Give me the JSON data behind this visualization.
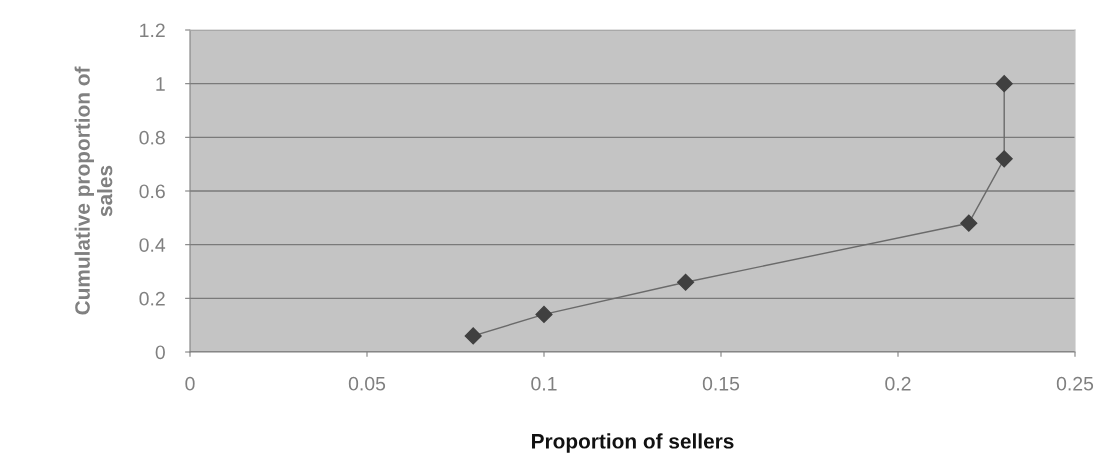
{
  "chart_data": {
    "type": "line",
    "xlabel": "Proportion of sellers",
    "ylabel": "Cumulative proportion of\nsales",
    "x": [
      0.08,
      0.1,
      0.14,
      0.22,
      0.23,
      0.23
    ],
    "series": [
      {
        "color": "#404040",
        "values": [
          0.06,
          0.14,
          0.26,
          0.48,
          0.72,
          1.0
        ]
      }
    ],
    "xlim": [
      0,
      0.25
    ],
    "xticks": [
      0,
      0.05,
      0.1,
      0.15,
      0.2,
      0.25
    ],
    "ylim": [
      0,
      1.2
    ],
    "yticks": [
      0,
      0.2,
      0.4,
      0.6,
      0.8,
      1,
      1.2
    ],
    "grid": "y",
    "marker": "diamond",
    "line_style": "solid",
    "legend": false
  }
}
